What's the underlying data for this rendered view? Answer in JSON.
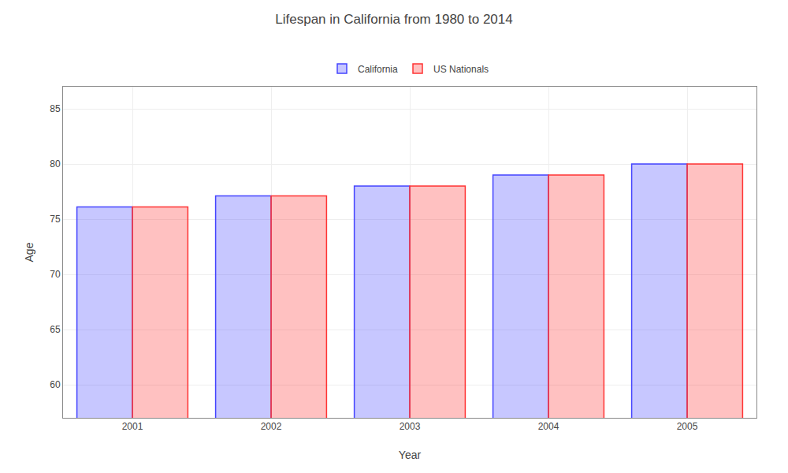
{
  "chart_data": {
    "type": "bar",
    "title": "Lifespan in California from 1980 to 2014",
    "xlabel": "Year",
    "ylabel": "Age",
    "categories": [
      "2001",
      "2002",
      "2003",
      "2004",
      "2005"
    ],
    "series": [
      {
        "name": "California",
        "color": "#4444ff",
        "values": [
          76.1,
          77.1,
          78.0,
          79.0,
          80.0
        ]
      },
      {
        "name": "US Nationals",
        "color": "#ff3333",
        "values": [
          76.1,
          77.1,
          78.0,
          79.0,
          80.0
        ]
      }
    ],
    "ylim": [
      57,
      87
    ],
    "yticks": [
      60,
      65,
      70,
      75,
      80,
      85
    ],
    "grid": true,
    "legend": "top"
  }
}
